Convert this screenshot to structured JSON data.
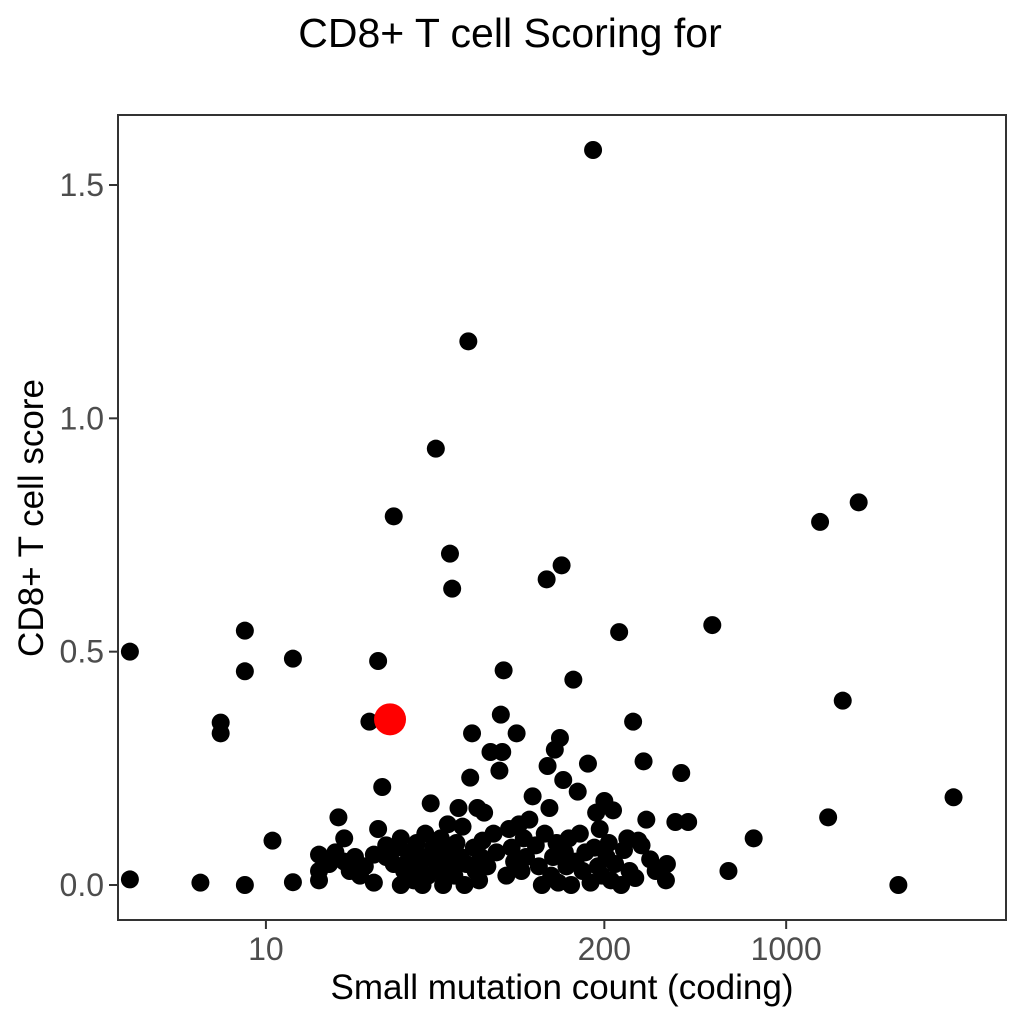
{
  "chart_data": {
    "type": "scatter",
    "title": "CD8+ T cell Scoring for",
    "xlabel": "Small mutation count (coding)",
    "ylabel": "CD8+ T cell score",
    "x_scale": "log10",
    "x_ticks": [
      10,
      200,
      1000
    ],
    "x_tick_labels": [
      "10",
      "200",
      "1000"
    ],
    "y_ticks": [
      0.0,
      0.5,
      1.0,
      1.5
    ],
    "y_tick_labels": [
      "0.0",
      "0.5",
      "1.0",
      "1.5"
    ],
    "xlim": [
      2.7,
      7000
    ],
    "ylim": [
      -0.075,
      1.65
    ],
    "grid": false,
    "colors": {
      "points": "#000000",
      "highlight": "#ff0000"
    },
    "highlight": {
      "x": 30,
      "y": 0.355
    },
    "points": [
      {
        "x": 3,
        "y": 0.5
      },
      {
        "x": 3,
        "y": 0.012
      },
      {
        "x": 5.6,
        "y": 0.005
      },
      {
        "x": 6.7,
        "y": 0.348
      },
      {
        "x": 6.7,
        "y": 0.325
      },
      {
        "x": 8.3,
        "y": 0.545
      },
      {
        "x": 8.3,
        "y": 0.458
      },
      {
        "x": 8.3,
        "y": 0.0
      },
      {
        "x": 10.6,
        "y": 0.095
      },
      {
        "x": 12.7,
        "y": 0.485
      },
      {
        "x": 12.7,
        "y": 0.006
      },
      {
        "x": 16,
        "y": 0.065
      },
      {
        "x": 16,
        "y": 0.03
      },
      {
        "x": 16,
        "y": 0.01
      },
      {
        "x": 19,
        "y": 0.145
      },
      {
        "x": 17.5,
        "y": 0.045
      },
      {
        "x": 18.5,
        "y": 0.07
      },
      {
        "x": 20,
        "y": 0.1
      },
      {
        "x": 20,
        "y": 0.05
      },
      {
        "x": 21,
        "y": 0.03
      },
      {
        "x": 22,
        "y": 0.06
      },
      {
        "x": 23,
        "y": 0.02
      },
      {
        "x": 24,
        "y": 0.04
      },
      {
        "x": 25,
        "y": 0.35
      },
      {
        "x": 26,
        "y": 0.005
      },
      {
        "x": 26,
        "y": 0.065
      },
      {
        "x": 27,
        "y": 0.48
      },
      {
        "x": 27,
        "y": 0.12
      },
      {
        "x": 28,
        "y": 0.21
      },
      {
        "x": 29,
        "y": 0.085
      },
      {
        "x": 29,
        "y": 0.06
      },
      {
        "x": 31,
        "y": 0.79
      },
      {
        "x": 31,
        "y": 0.045
      },
      {
        "x": 32,
        "y": 0.08
      },
      {
        "x": 33,
        "y": 0.1
      },
      {
        "x": 33,
        "y": 0.0
      },
      {
        "x": 34,
        "y": 0.03
      },
      {
        "x": 35,
        "y": 0.05
      },
      {
        "x": 36,
        "y": 0.07
      },
      {
        "x": 37,
        "y": 0.01
      },
      {
        "x": 38,
        "y": 0.09
      },
      {
        "x": 39,
        "y": 0.04
      },
      {
        "x": 40,
        "y": 0.06
      },
      {
        "x": 40,
        "y": 0.0
      },
      {
        "x": 41,
        "y": 0.11
      },
      {
        "x": 42,
        "y": 0.02
      },
      {
        "x": 43,
        "y": 0.175
      },
      {
        "x": 44,
        "y": 0.08
      },
      {
        "x": 45,
        "y": 0.935
      },
      {
        "x": 45,
        "y": 0.05
      },
      {
        "x": 46,
        "y": 0.03
      },
      {
        "x": 47,
        "y": 0.1
      },
      {
        "x": 48,
        "y": 0.0
      },
      {
        "x": 49,
        "y": 0.07
      },
      {
        "x": 50,
        "y": 0.13
      },
      {
        "x": 51,
        "y": 0.71
      },
      {
        "x": 51,
        "y": 0.04
      },
      {
        "x": 52,
        "y": 0.635
      },
      {
        "x": 53,
        "y": 0.02
      },
      {
        "x": 54,
        "y": 0.09
      },
      {
        "x": 55,
        "y": 0.165
      },
      {
        "x": 56,
        "y": 0.06
      },
      {
        "x": 57,
        "y": 0.125
      },
      {
        "x": 58,
        "y": 0.0
      },
      {
        "x": 59,
        "y": 0.045
      },
      {
        "x": 60,
        "y": 1.165
      },
      {
        "x": 61,
        "y": 0.23
      },
      {
        "x": 62,
        "y": 0.325
      },
      {
        "x": 63,
        "y": 0.08
      },
      {
        "x": 64,
        "y": 0.03
      },
      {
        "x": 65,
        "y": 0.165
      },
      {
        "x": 66,
        "y": 0.01
      },
      {
        "x": 67,
        "y": 0.06
      },
      {
        "x": 68,
        "y": 0.095
      },
      {
        "x": 69,
        "y": 0.155
      },
      {
        "x": 71,
        "y": 0.04
      },
      {
        "x": 73,
        "y": 0.285
      },
      {
        "x": 75,
        "y": 0.11
      },
      {
        "x": 77,
        "y": 0.07
      },
      {
        "x": 79,
        "y": 0.245
      },
      {
        "x": 80,
        "y": 0.365
      },
      {
        "x": 81,
        "y": 0.285
      },
      {
        "x": 82,
        "y": 0.46
      },
      {
        "x": 84,
        "y": 0.02
      },
      {
        "x": 86,
        "y": 0.12
      },
      {
        "x": 88,
        "y": 0.08
      },
      {
        "x": 90,
        "y": 0.05
      },
      {
        "x": 92,
        "y": 0.325
      },
      {
        "x": 94,
        "y": 0.13
      },
      {
        "x": 96,
        "y": 0.03
      },
      {
        "x": 98,
        "y": 0.1
      },
      {
        "x": 100,
        "y": 0.06
      },
      {
        "x": 103,
        "y": 0.14
      },
      {
        "x": 106,
        "y": 0.19
      },
      {
        "x": 109,
        "y": 0.085
      },
      {
        "x": 112,
        "y": 0.04
      },
      {
        "x": 115,
        "y": 0.0
      },
      {
        "x": 118,
        "y": 0.11
      },
      {
        "x": 120,
        "y": 0.655
      },
      {
        "x": 121,
        "y": 0.255
      },
      {
        "x": 123,
        "y": 0.165
      },
      {
        "x": 125,
        "y": 0.02
      },
      {
        "x": 127,
        "y": 0.06
      },
      {
        "x": 129,
        "y": 0.29
      },
      {
        "x": 131,
        "y": 0.09
      },
      {
        "x": 133,
        "y": 0.005
      },
      {
        "x": 135,
        "y": 0.315
      },
      {
        "x": 137,
        "y": 0.685
      },
      {
        "x": 139,
        "y": 0.225
      },
      {
        "x": 141,
        "y": 0.07
      },
      {
        "x": 143,
        "y": 0.04
      },
      {
        "x": 146,
        "y": 0.1
      },
      {
        "x": 149,
        "y": 0.0
      },
      {
        "x": 152,
        "y": 0.44
      },
      {
        "x": 155,
        "y": 0.05
      },
      {
        "x": 158,
        "y": 0.2
      },
      {
        "x": 161,
        "y": 0.11
      },
      {
        "x": 165,
        "y": 0.03
      },
      {
        "x": 169,
        "y": 0.07
      },
      {
        "x": 173,
        "y": 0.26
      },
      {
        "x": 177,
        "y": 0.005
      },
      {
        "x": 181,
        "y": 1.575
      },
      {
        "x": 183,
        "y": 0.08
      },
      {
        "x": 186,
        "y": 0.155
      },
      {
        "x": 189,
        "y": 0.04
      },
      {
        "x": 192,
        "y": 0.12
      },
      {
        "x": 196,
        "y": 0.02
      },
      {
        "x": 200,
        "y": 0.18
      },
      {
        "x": 204,
        "y": 0.06
      },
      {
        "x": 208,
        "y": 0.09
      },
      {
        "x": 212,
        "y": 0.01
      },
      {
        "x": 216,
        "y": 0.16
      },
      {
        "x": 220,
        "y": 0.045
      },
      {
        "x": 228,
        "y": 0.542
      },
      {
        "x": 232,
        "y": 0.0
      },
      {
        "x": 238,
        "y": 0.075
      },
      {
        "x": 245,
        "y": 0.1
      },
      {
        "x": 250,
        "y": 0.03
      },
      {
        "x": 258,
        "y": 0.35
      },
      {
        "x": 263,
        "y": 0.015
      },
      {
        "x": 270,
        "y": 0.095
      },
      {
        "x": 278,
        "y": 0.085
      },
      {
        "x": 283,
        "y": 0.265
      },
      {
        "x": 290,
        "y": 0.14
      },
      {
        "x": 300,
        "y": 0.055
      },
      {
        "x": 315,
        "y": 0.03
      },
      {
        "x": 345,
        "y": 0.01
      },
      {
        "x": 348,
        "y": 0.045
      },
      {
        "x": 395,
        "y": 0.24
      },
      {
        "x": 375,
        "y": 0.135
      },
      {
        "x": 420,
        "y": 0.135
      },
      {
        "x": 520,
        "y": 0.557
      },
      {
        "x": 600,
        "y": 0.03
      },
      {
        "x": 750,
        "y": 0.1
      },
      {
        "x": 1350,
        "y": 0.778
      },
      {
        "x": 1450,
        "y": 0.145
      },
      {
        "x": 1650,
        "y": 0.395
      },
      {
        "x": 1900,
        "y": 0.82
      },
      {
        "x": 2700,
        "y": 0.0
      },
      {
        "x": 4400,
        "y": 0.188
      }
    ]
  }
}
